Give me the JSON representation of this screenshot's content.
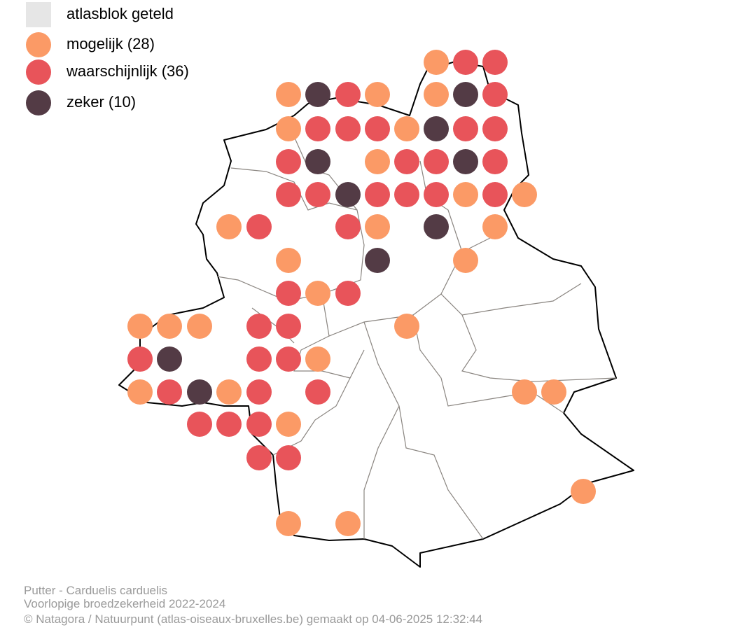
{
  "legend": [
    {
      "label": "atlasblok geteld",
      "color": "#e6e6e6"
    },
    {
      "label": "mogelijk (28)",
      "color": "#fb9a66"
    },
    {
      "label": "waarschijnlijk (36)",
      "color": "#e8545a"
    },
    {
      "label": "zeker (10)",
      "color": "#533b45"
    }
  ],
  "caption": [
    "Putter - Carduelis carduelis",
    "Voorlopige broedzekerheid 2022-2024",
    "© Natagora / Natuurpunt (atlas-oiseaux-bruxelles.be) gemaakt op 04-06-2025 12:32:44"
  ]
}
